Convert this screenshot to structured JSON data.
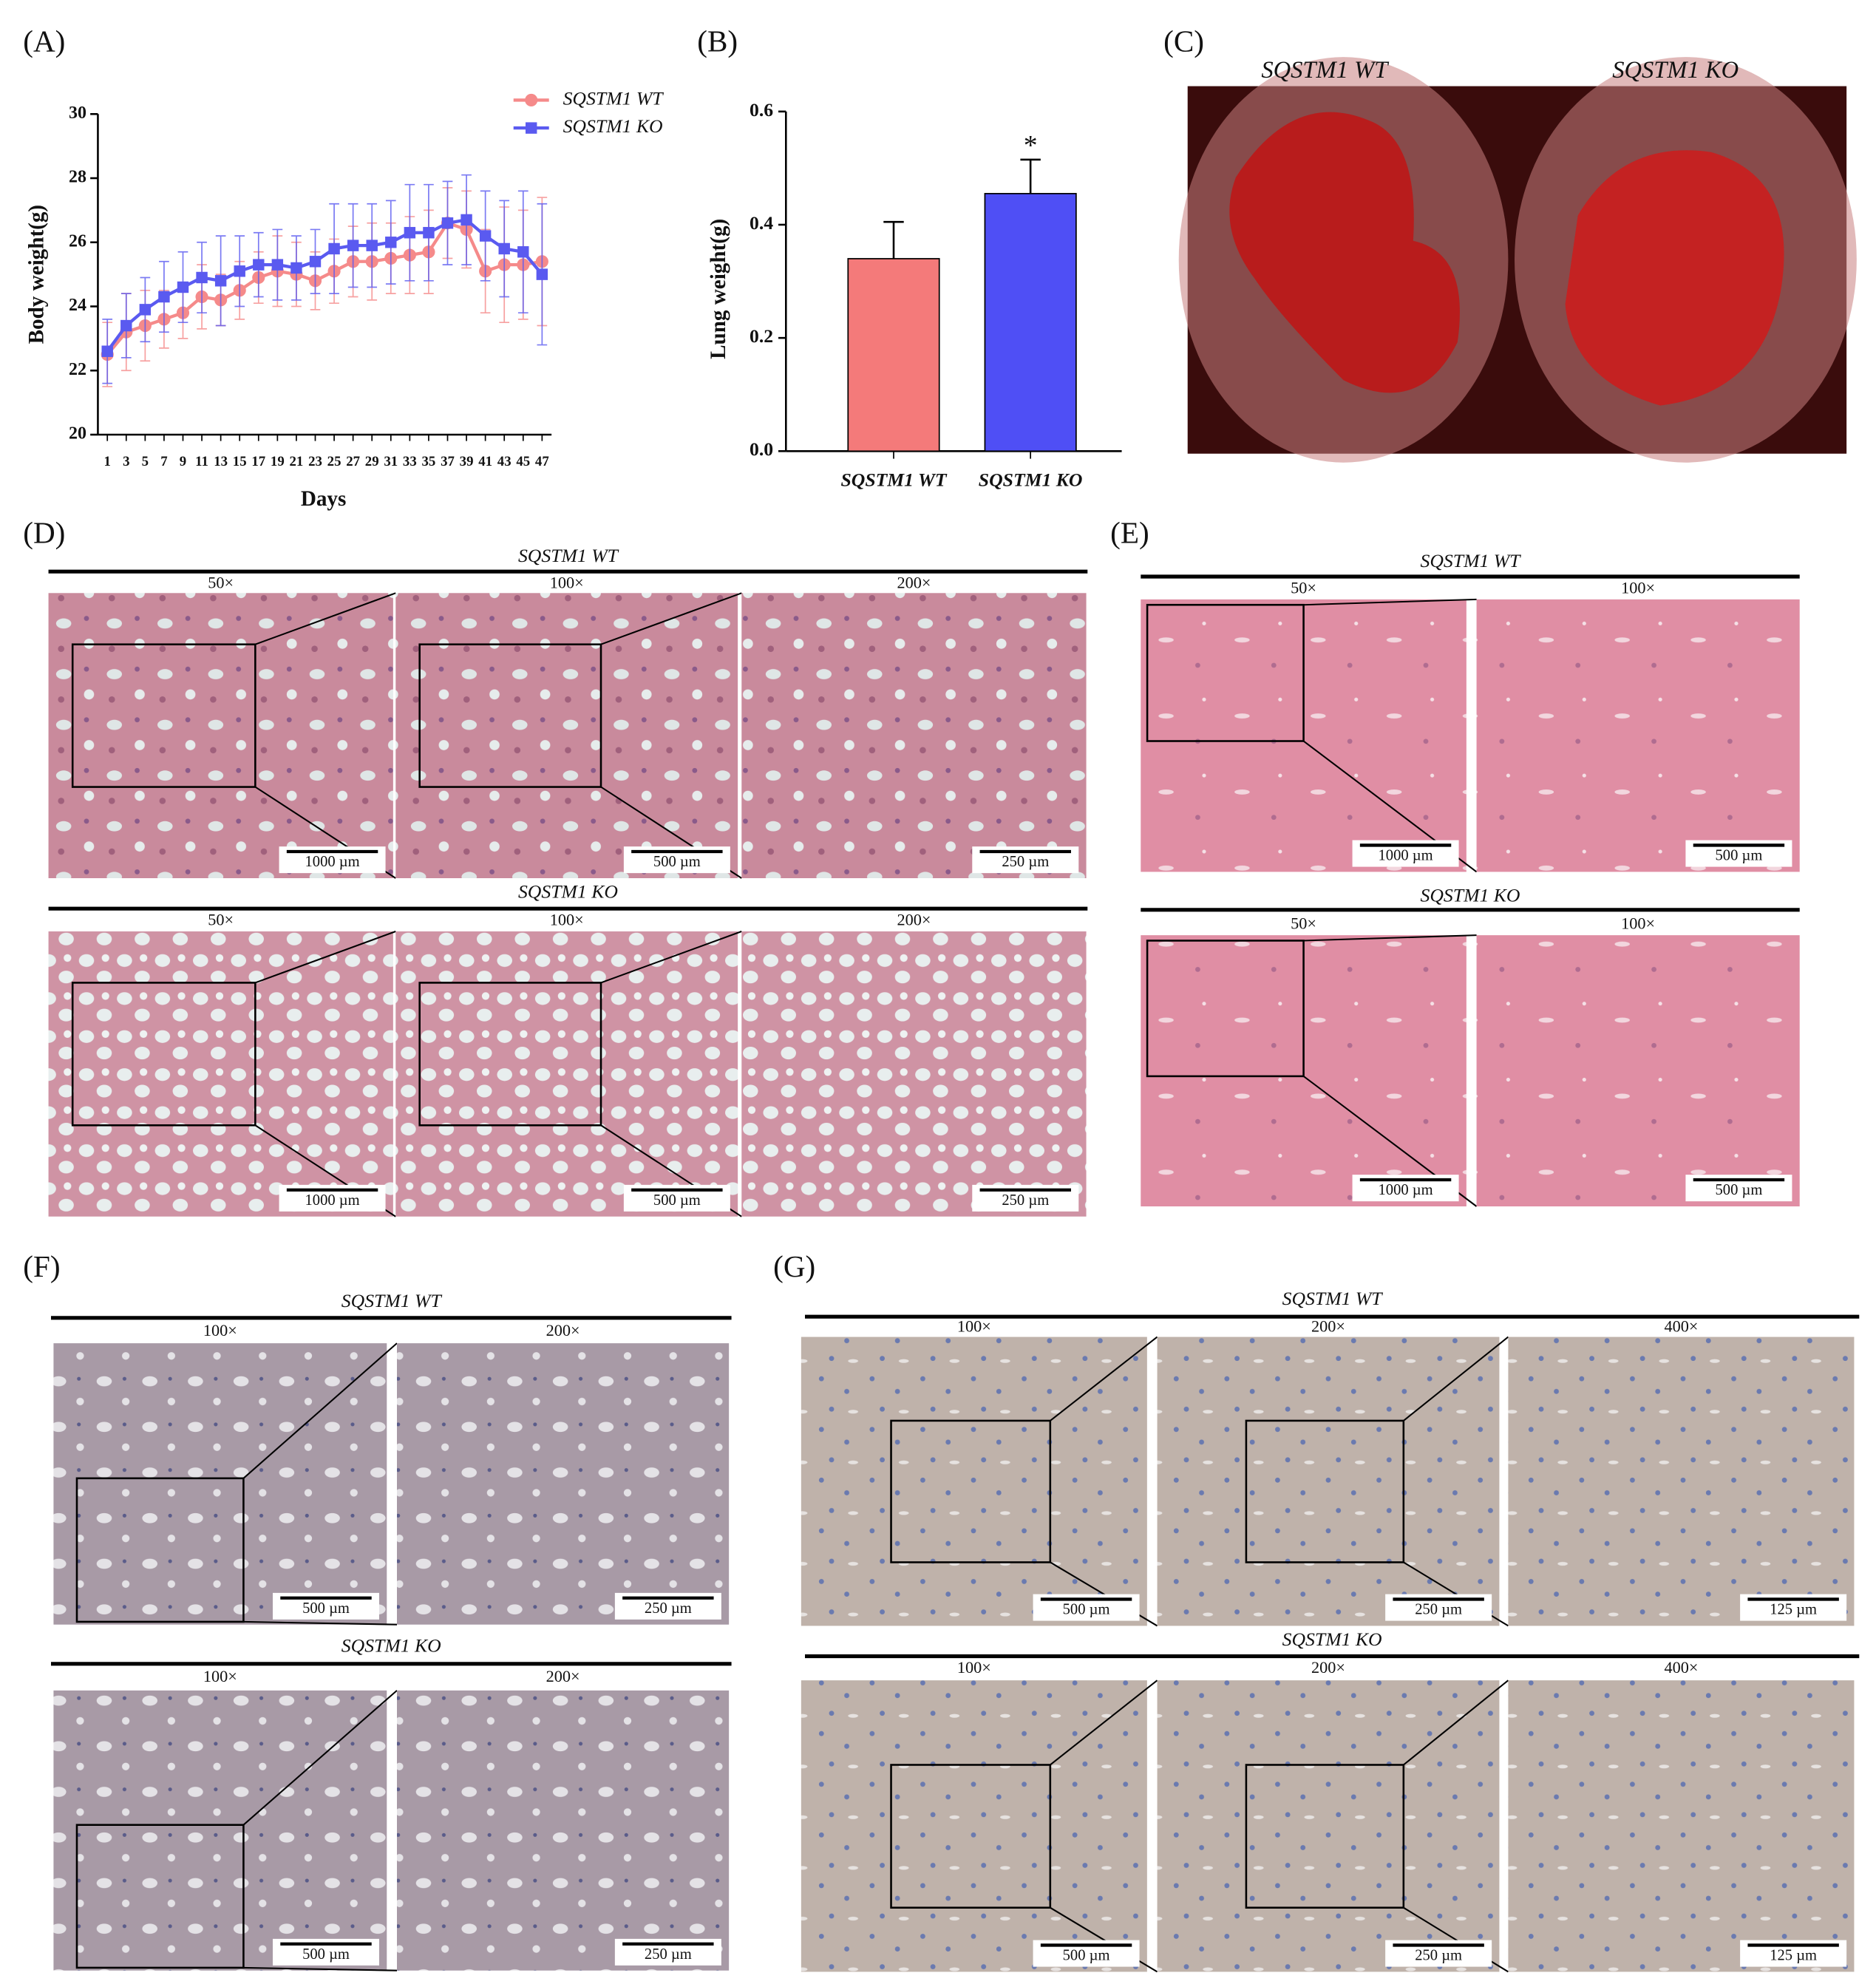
{
  "chart_data": [
    {
      "type": "line",
      "ylabel": "Body weight(g)",
      "xlabel": "Days",
      "x": [
        1,
        3,
        5,
        7,
        9,
        11,
        13,
        15,
        17,
        19,
        21,
        23,
        25,
        27,
        29,
        31,
        33,
        35,
        37,
        39,
        41,
        43,
        45,
        47
      ],
      "xlim": [
        0,
        48
      ],
      "xticks": [
        1,
        3,
        5,
        7,
        9,
        11,
        13,
        15,
        17,
        19,
        21,
        23,
        25,
        27,
        29,
        31,
        33,
        35,
        37,
        39,
        41,
        43,
        45,
        47
      ],
      "ylim": [
        20,
        30
      ],
      "yticks": [
        20,
        22,
        24,
        26,
        28,
        30
      ],
      "series": [
        {
          "name": "SQSTM1 WT",
          "color": "#f58a8a",
          "marker": "circle",
          "values": [
            22.5,
            23.2,
            23.4,
            23.6,
            23.8,
            24.3,
            24.2,
            24.5,
            24.9,
            25.1,
            25.0,
            24.8,
            25.1,
            25.4,
            25.4,
            25.5,
            25.6,
            25.7,
            26.6,
            26.4,
            25.1,
            25.3,
            25.3,
            25.4
          ],
          "errors": [
            1.0,
            1.2,
            1.1,
            0.9,
            0.8,
            1.0,
            0.8,
            0.9,
            0.8,
            1.1,
            1.0,
            0.9,
            1.0,
            1.1,
            1.2,
            1.1,
            1.2,
            1.3,
            1.1,
            1.2,
            1.3,
            1.8,
            1.7,
            2.0
          ]
        },
        {
          "name": "SQSTM1 KO",
          "color": "#5a5af0",
          "marker": "square",
          "values": [
            22.6,
            23.4,
            23.9,
            24.3,
            24.6,
            24.9,
            24.8,
            25.1,
            25.3,
            25.3,
            25.2,
            25.4,
            25.8,
            25.9,
            25.9,
            26.0,
            26.3,
            26.3,
            26.6,
            26.7,
            26.2,
            25.8,
            25.7,
            25.0
          ],
          "errors": [
            1.0,
            1.0,
            1.0,
            1.1,
            1.1,
            1.1,
            1.4,
            1.1,
            1.0,
            1.1,
            1.0,
            1.0,
            1.4,
            1.3,
            1.3,
            1.3,
            1.5,
            1.5,
            1.3,
            1.4,
            1.4,
            1.5,
            1.9,
            2.2
          ]
        }
      ]
    },
    {
      "type": "bar",
      "ylabel": "Lung weight(g)",
      "categories": [
        "SQSTM1 WT",
        "SQSTM1 KO"
      ],
      "values": [
        0.34,
        0.455
      ],
      "errors": [
        0.065,
        0.06
      ],
      "colors": [
        "#f47a7a",
        "#4f4ff5"
      ],
      "annotation": "*",
      "ylim": [
        0,
        0.6
      ],
      "yticks": [
        {
          "value": 0,
          "label": "0.0"
        },
        0.2,
        0.4,
        0.6
      ]
    }
  ],
  "panel_labels": [
    "(A)",
    "(B)",
    "(C)",
    "(D)",
    "(E)",
    "(F)",
    "(G)"
  ],
  "photo": {
    "labels": [
      "SQSTM1 WT",
      "SQSTM1 KO"
    ]
  },
  "histology": [
    {
      "groups": [
        {
          "title": "SQSTM1 WT",
          "magnifications": [
            "50×",
            "100×",
            "200×"
          ],
          "scale_bars": [
            "1000 µm",
            "500 µm",
            "250 µm"
          ]
        },
        {
          "title": "SQSTM1 KO",
          "magnifications": [
            "50×",
            "100×",
            "200×"
          ],
          "scale_bars": [
            "1000 µm",
            "500 µm",
            "250 µm"
          ]
        }
      ]
    },
    {
      "groups": [
        {
          "title": "SQSTM1 WT",
          "magnifications": [
            "50×",
            "100×"
          ],
          "scale_bars": [
            "1000 µm",
            "500 µm"
          ]
        },
        {
          "title": "SQSTM1 KO",
          "magnifications": [
            "50×",
            "100×"
          ],
          "scale_bars": [
            "1000 µm",
            "500 µm"
          ]
        }
      ]
    },
    {
      "groups": [
        {
          "title": "SQSTM1 WT",
          "magnifications": [
            "100×",
            "200×"
          ],
          "scale_bars": [
            "500 µm",
            "250 µm"
          ]
        },
        {
          "title": "SQSTM1 KO",
          "magnifications": [
            "100×",
            "200×"
          ],
          "scale_bars": [
            "500 µm",
            "250 µm"
          ]
        }
      ]
    },
    {
      "groups": [
        {
          "title": "SQSTM1 WT",
          "magnifications": [
            "100×",
            "200×",
            "400×"
          ],
          "scale_bars": [
            "500 µm",
            "250 µm",
            "125 µm"
          ]
        },
        {
          "title": "SQSTM1 KO",
          "magnifications": [
            "100×",
            "200×",
            "400×"
          ],
          "scale_bars": [
            "500 µm",
            "250 µm",
            "125 µm"
          ]
        }
      ]
    }
  ]
}
